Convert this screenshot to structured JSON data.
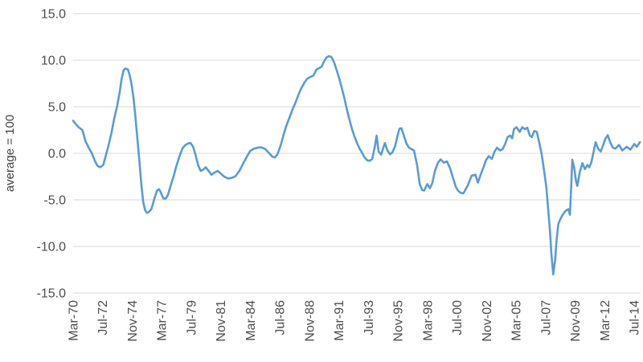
{
  "window": {
    "background": "#ffffff"
  },
  "chart_data": {
    "type": "line",
    "title": "",
    "xlabel": "",
    "ylabel": "average = 100",
    "ylim": [
      -15,
      15
    ],
    "y_tick_values": [
      15,
      10,
      5,
      0,
      -5,
      -10,
      -15
    ],
    "y_tick_labels": [
      "15.0",
      "10.0",
      "5.0",
      "0.0",
      "-5.0",
      "-10.0",
      "-15.0"
    ],
    "x_tick_labels": [
      "Mar-70",
      "Jul-72",
      "Nov-74",
      "Mar-77",
      "Jul-79",
      "Nov-81",
      "Mar-84",
      "Jul-86",
      "Nov-88",
      "Mar-91",
      "Jul-93",
      "Nov-95",
      "Mar-98",
      "Jul-00",
      "Nov-02",
      "Mar-05",
      "Jul-07",
      "Nov-09",
      "Mar-12",
      "Jul-14"
    ],
    "x_tick_years": [
      1970.17,
      1972.5,
      1974.83,
      1977.17,
      1979.5,
      1981.83,
      1984.17,
      1986.5,
      1988.83,
      1991.17,
      1993.5,
      1995.83,
      1998.17,
      2000.5,
      2002.83,
      2005.17,
      2007.5,
      2009.83,
      2012.17,
      2014.5
    ],
    "x_range": [
      1970.17,
      2015.0
    ],
    "grid": true,
    "legend": "none",
    "style": {
      "line_color": "#5B9BD5",
      "line_width": 2.6,
      "gridline_color": "#D9D9D9",
      "tick_label_color": "#4D4D4D",
      "axis_title_color": "#404040",
      "tick_font_px": 16,
      "axis_title_font_px": 15
    },
    "series": [
      {
        "name": "",
        "points": [
          [
            1970.17,
            3.5
          ],
          [
            1970.4,
            3.1
          ],
          [
            1970.6,
            2.8
          ],
          [
            1970.9,
            2.5
          ],
          [
            1971.15,
            1.3
          ],
          [
            1971.4,
            0.6
          ],
          [
            1971.65,
            0.0
          ],
          [
            1971.9,
            -0.85
          ],
          [
            1972.1,
            -1.35
          ],
          [
            1972.3,
            -1.5
          ],
          [
            1972.55,
            -1.25
          ],
          [
            1972.75,
            -0.25
          ],
          [
            1973.0,
            1.05
          ],
          [
            1973.2,
            2.2
          ],
          [
            1973.4,
            3.65
          ],
          [
            1973.65,
            5.1
          ],
          [
            1973.85,
            6.6
          ],
          [
            1974.0,
            8.0
          ],
          [
            1974.15,
            8.9
          ],
          [
            1974.3,
            9.1
          ],
          [
            1974.5,
            9.0
          ],
          [
            1974.65,
            8.3
          ],
          [
            1974.8,
            7.3
          ],
          [
            1974.95,
            5.8
          ],
          [
            1975.1,
            3.8
          ],
          [
            1975.25,
            1.5
          ],
          [
            1975.4,
            -0.8
          ],
          [
            1975.55,
            -3.2
          ],
          [
            1975.7,
            -5.2
          ],
          [
            1975.85,
            -6.1
          ],
          [
            1976.0,
            -6.4
          ],
          [
            1976.15,
            -6.3
          ],
          [
            1976.35,
            -6.0
          ],
          [
            1976.5,
            -5.3
          ],
          [
            1976.65,
            -4.6
          ],
          [
            1976.8,
            -4.0
          ],
          [
            1976.95,
            -3.85
          ],
          [
            1977.1,
            -4.2
          ],
          [
            1977.3,
            -4.85
          ],
          [
            1977.5,
            -4.85
          ],
          [
            1977.65,
            -4.5
          ],
          [
            1977.85,
            -3.6
          ],
          [
            1978.1,
            -2.5
          ],
          [
            1978.3,
            -1.5
          ],
          [
            1978.55,
            -0.4
          ],
          [
            1978.8,
            0.5
          ],
          [
            1979.0,
            0.85
          ],
          [
            1979.25,
            1.05
          ],
          [
            1979.45,
            1.1
          ],
          [
            1979.65,
            0.7
          ],
          [
            1979.85,
            -0.2
          ],
          [
            1980.05,
            -1.3
          ],
          [
            1980.25,
            -1.9
          ],
          [
            1980.45,
            -1.75
          ],
          [
            1980.65,
            -1.5
          ],
          [
            1980.9,
            -1.95
          ],
          [
            1981.1,
            -2.3
          ],
          [
            1981.35,
            -2.05
          ],
          [
            1981.6,
            -1.9
          ],
          [
            1981.85,
            -2.2
          ],
          [
            1982.1,
            -2.5
          ],
          [
            1982.4,
            -2.7
          ],
          [
            1982.7,
            -2.65
          ],
          [
            1983.0,
            -2.45
          ],
          [
            1983.3,
            -1.9
          ],
          [
            1983.6,
            -1.1
          ],
          [
            1983.9,
            -0.35
          ],
          [
            1984.15,
            0.25
          ],
          [
            1984.45,
            0.5
          ],
          [
            1984.75,
            0.6
          ],
          [
            1985.0,
            0.65
          ],
          [
            1985.3,
            0.5
          ],
          [
            1985.6,
            0.1
          ],
          [
            1985.9,
            -0.35
          ],
          [
            1986.1,
            -0.45
          ],
          [
            1986.3,
            -0.15
          ],
          [
            1986.55,
            0.8
          ],
          [
            1986.8,
            2.0
          ],
          [
            1987.0,
            2.9
          ],
          [
            1987.25,
            3.8
          ],
          [
            1987.5,
            4.7
          ],
          [
            1987.75,
            5.5
          ],
          [
            1988.0,
            6.4
          ],
          [
            1988.2,
            7.0
          ],
          [
            1988.45,
            7.6
          ],
          [
            1988.65,
            8.0
          ],
          [
            1988.9,
            8.2
          ],
          [
            1989.15,
            8.35
          ],
          [
            1989.4,
            9.0
          ],
          [
            1989.6,
            9.15
          ],
          [
            1989.8,
            9.3
          ],
          [
            1990.0,
            9.9
          ],
          [
            1990.2,
            10.3
          ],
          [
            1990.4,
            10.45
          ],
          [
            1990.6,
            10.3
          ],
          [
            1990.8,
            9.7
          ],
          [
            1991.0,
            8.9
          ],
          [
            1991.2,
            8.0
          ],
          [
            1991.4,
            7.0
          ],
          [
            1991.6,
            5.9
          ],
          [
            1991.8,
            4.7
          ],
          [
            1992.0,
            3.6
          ],
          [
            1992.2,
            2.6
          ],
          [
            1992.4,
            1.8
          ],
          [
            1992.6,
            1.1
          ],
          [
            1992.8,
            0.5
          ],
          [
            1993.0,
            0.05
          ],
          [
            1993.2,
            -0.45
          ],
          [
            1993.4,
            -0.75
          ],
          [
            1993.6,
            -0.8
          ],
          [
            1993.8,
            -0.6
          ],
          [
            1994.0,
            0.7
          ],
          [
            1994.15,
            1.9
          ],
          [
            1994.3,
            0.2
          ],
          [
            1994.5,
            -0.15
          ],
          [
            1994.65,
            0.5
          ],
          [
            1994.8,
            1.1
          ],
          [
            1995.0,
            0.3
          ],
          [
            1995.2,
            -0.1
          ],
          [
            1995.4,
            0.1
          ],
          [
            1995.6,
            0.75
          ],
          [
            1995.8,
            1.9
          ],
          [
            1995.95,
            2.65
          ],
          [
            1996.1,
            2.7
          ],
          [
            1996.3,
            1.9
          ],
          [
            1996.5,
            1.05
          ],
          [
            1996.7,
            0.6
          ],
          [
            1996.9,
            0.45
          ],
          [
            1997.1,
            0.3
          ],
          [
            1997.35,
            -1.3
          ],
          [
            1997.55,
            -3.3
          ],
          [
            1997.75,
            -3.95
          ],
          [
            1997.9,
            -4.0
          ],
          [
            1998.15,
            -3.3
          ],
          [
            1998.35,
            -3.75
          ],
          [
            1998.55,
            -3.2
          ],
          [
            1998.75,
            -1.9
          ],
          [
            1999.0,
            -1.0
          ],
          [
            1999.2,
            -0.65
          ],
          [
            1999.45,
            -1.0
          ],
          [
            1999.7,
            -0.87
          ],
          [
            1999.95,
            -1.6
          ],
          [
            2000.15,
            -2.5
          ],
          [
            2000.4,
            -3.6
          ],
          [
            2000.6,
            -4.05
          ],
          [
            2000.8,
            -4.25
          ],
          [
            2001.0,
            -4.3
          ],
          [
            2001.35,
            -3.45
          ],
          [
            2001.65,
            -2.4
          ],
          [
            2001.95,
            -2.3
          ],
          [
            2002.15,
            -3.15
          ],
          [
            2002.35,
            -2.35
          ],
          [
            2002.6,
            -1.45
          ],
          [
            2002.8,
            -0.7
          ],
          [
            2003.0,
            -0.3
          ],
          [
            2003.25,
            -0.6
          ],
          [
            2003.45,
            0.15
          ],
          [
            2003.65,
            0.6
          ],
          [
            2003.9,
            0.3
          ],
          [
            2004.1,
            0.45
          ],
          [
            2004.3,
            1.0
          ],
          [
            2004.5,
            1.75
          ],
          [
            2004.7,
            1.9
          ],
          [
            2004.85,
            1.6
          ],
          [
            2005.0,
            2.6
          ],
          [
            2005.2,
            2.8
          ],
          [
            2005.45,
            2.3
          ],
          [
            2005.65,
            2.8
          ],
          [
            2005.85,
            2.6
          ],
          [
            2006.05,
            2.75
          ],
          [
            2006.25,
            1.9
          ],
          [
            2006.4,
            1.75
          ],
          [
            2006.6,
            2.4
          ],
          [
            2006.8,
            2.3
          ],
          [
            2007.0,
            1.1
          ],
          [
            2007.15,
            0.15
          ],
          [
            2007.25,
            -0.7
          ],
          [
            2007.4,
            -2.1
          ],
          [
            2007.55,
            -3.6
          ],
          [
            2007.7,
            -6.0
          ],
          [
            2007.85,
            -8.5
          ],
          [
            2007.95,
            -10.8
          ],
          [
            2008.1,
            -13.0
          ],
          [
            2008.25,
            -11.5
          ],
          [
            2008.35,
            -9.5
          ],
          [
            2008.5,
            -7.6
          ],
          [
            2008.65,
            -7.1
          ],
          [
            2008.8,
            -6.7
          ],
          [
            2009.0,
            -6.3
          ],
          [
            2009.15,
            -6.1
          ],
          [
            2009.3,
            -6.0
          ],
          [
            2009.42,
            -6.6
          ],
          [
            2009.52,
            -3.5
          ],
          [
            2009.6,
            -0.7
          ],
          [
            2009.75,
            -1.5
          ],
          [
            2009.9,
            -3.0
          ],
          [
            2010.0,
            -3.5
          ],
          [
            2010.2,
            -2.0
          ],
          [
            2010.4,
            -1.05
          ],
          [
            2010.6,
            -1.7
          ],
          [
            2010.8,
            -1.25
          ],
          [
            2010.95,
            -1.5
          ],
          [
            2011.1,
            -1.0
          ],
          [
            2011.25,
            -0.1
          ],
          [
            2011.45,
            1.2
          ],
          [
            2011.65,
            0.5
          ],
          [
            2011.85,
            0.2
          ],
          [
            2012.05,
            0.9
          ],
          [
            2012.2,
            1.5
          ],
          [
            2012.4,
            1.95
          ],
          [
            2012.6,
            1.2
          ],
          [
            2012.8,
            0.6
          ],
          [
            2013.0,
            0.5
          ],
          [
            2013.3,
            0.9
          ],
          [
            2013.55,
            0.3
          ],
          [
            2013.9,
            0.7
          ],
          [
            2014.2,
            0.4
          ],
          [
            2014.5,
            1.0
          ],
          [
            2014.7,
            0.7
          ],
          [
            2014.95,
            1.2
          ]
        ]
      }
    ]
  }
}
